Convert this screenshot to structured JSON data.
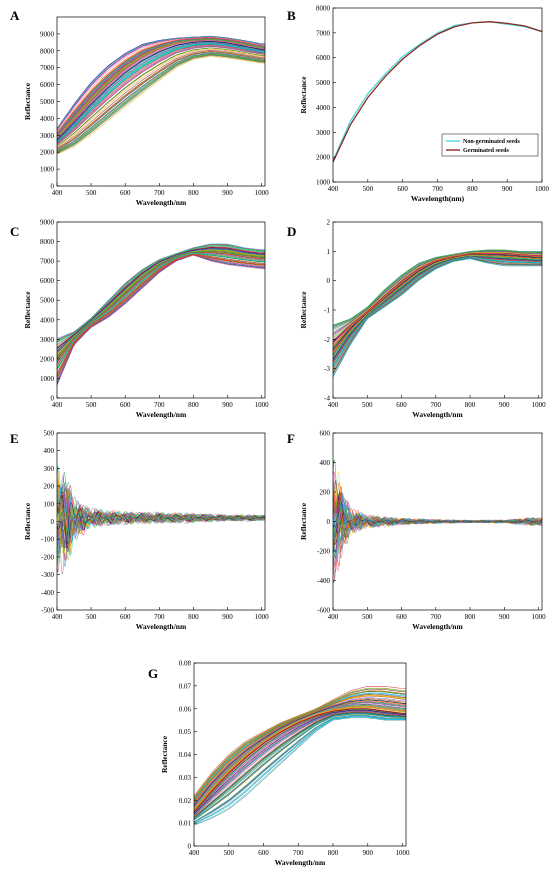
{
  "chart_data": [
    {
      "id": "A",
      "panel_label": "A",
      "type": "line",
      "xlabel": "Wavelength/nm",
      "ylabel": "Reflectance",
      "xlim": [
        400,
        1010
      ],
      "ylim": [
        0,
        10000
      ],
      "xticks": [
        "400",
        "500",
        "600",
        "700",
        "800",
        "900",
        "1000"
      ],
      "yticks": [
        "0",
        "1000",
        "2000",
        "3000",
        "4000",
        "5000",
        "6000",
        "7000",
        "8000",
        "9000"
      ],
      "x": [
        400,
        450,
        500,
        550,
        600,
        650,
        700,
        750,
        800,
        850,
        900,
        950,
        1000
      ],
      "mean": [
        2800,
        3900,
        5000,
        6000,
        6900,
        7600,
        8100,
        8450,
        8600,
        8650,
        8550,
        8350,
        8150
      ],
      "band_low": [
        1800,
        2200,
        2900,
        3700,
        4500,
        5300,
        6100,
        6900,
        7400,
        7600,
        7500,
        7350,
        7200
      ],
      "band_high": [
        3500,
        5000,
        6300,
        7300,
        8000,
        8500,
        8700,
        8800,
        8850,
        8900,
        8800,
        8650,
        8450
      ],
      "series_count": 120
    },
    {
      "id": "B",
      "panel_label": "B",
      "type": "line",
      "xlabel": "Wavelength(nm)",
      "ylabel": "Reflectance",
      "xlim": [
        400,
        1000
      ],
      "ylim": [
        1000,
        8000
      ],
      "xticks": [
        "400",
        "500",
        "600",
        "700",
        "800",
        "900",
        "1000"
      ],
      "yticks": [
        "1000",
        "2000",
        "3000",
        "4000",
        "5000",
        "6000",
        "7000",
        "8000"
      ],
      "x": [
        400,
        450,
        500,
        550,
        600,
        650,
        700,
        750,
        800,
        850,
        900,
        950,
        1000
      ],
      "series": [
        {
          "name": "Non-germinated seeds",
          "color": "#4fd6e0",
          "values": [
            1850,
            3450,
            4550,
            5350,
            6050,
            6550,
            7000,
            7300,
            7400,
            7450,
            7350,
            7250,
            7050
          ]
        },
        {
          "name": "Germinated seeds",
          "color": "#8b2a1e",
          "values": [
            1800,
            3300,
            4400,
            5250,
            5950,
            6500,
            6950,
            7250,
            7400,
            7450,
            7380,
            7280,
            7050
          ]
        }
      ]
    },
    {
      "id": "C",
      "panel_label": "C",
      "type": "line",
      "xlabel": "Wavelength/nm",
      "ylabel": "Reflectance",
      "xlim": [
        400,
        1010
      ],
      "ylim": [
        0,
        9000
      ],
      "xticks": [
        "400",
        "500",
        "600",
        "700",
        "800",
        "900",
        "1000"
      ],
      "yticks": [
        "0",
        "1000",
        "2000",
        "3000",
        "4000",
        "5000",
        "6000",
        "7000",
        "8000",
        "9000"
      ],
      "x": [
        400,
        450,
        500,
        550,
        600,
        650,
        700,
        750,
        800,
        850,
        900,
        950,
        1000
      ],
      "mean": [
        2000,
        3100,
        3900,
        4600,
        5400,
        6200,
        6850,
        7250,
        7450,
        7500,
        7450,
        7300,
        7200
      ],
      "band_low": [
        600,
        2700,
        3600,
        4100,
        4800,
        5600,
        6400,
        7000,
        7300,
        7000,
        6800,
        6700,
        6600
      ],
      "band_high": [
        3100,
        3400,
        4100,
        5000,
        5900,
        6600,
        7100,
        7400,
        7700,
        7900,
        7900,
        7700,
        7600
      ],
      "series_count": 120
    },
    {
      "id": "D",
      "panel_label": "D",
      "type": "line",
      "xlabel": "Wavelength/nm",
      "ylabel": "Reflectance",
      "xlim": [
        400,
        1010
      ],
      "ylim": [
        -4,
        2
      ],
      "xticks": [
        "400",
        "500",
        "600",
        "700",
        "800",
        "900",
        "1000"
      ],
      "yticks": [
        "-4",
        "-3",
        "-2",
        "-1",
        "0",
        "1",
        "2"
      ],
      "x": [
        400,
        450,
        500,
        550,
        600,
        650,
        700,
        750,
        800,
        850,
        900,
        950,
        1000
      ],
      "mean": [
        -2.3,
        -1.6,
        -1.1,
        -0.6,
        -0.1,
        0.35,
        0.65,
        0.8,
        0.9,
        0.9,
        0.9,
        0.85,
        0.8
      ],
      "band_low": [
        -3.3,
        -2.2,
        -1.3,
        -0.9,
        -0.5,
        0.0,
        0.4,
        0.65,
        0.75,
        0.6,
        0.5,
        0.5,
        0.5
      ],
      "band_high": [
        -1.5,
        -1.3,
        -0.9,
        -0.3,
        0.2,
        0.6,
        0.8,
        0.9,
        1.0,
        1.05,
        1.05,
        1.0,
        1.0
      ],
      "series_count": 120
    },
    {
      "id": "E",
      "panel_label": "E",
      "type": "line",
      "xlabel": "Wavelength/nm",
      "ylabel": "Reflectance",
      "xlim": [
        400,
        1010
      ],
      "ylim": [
        -500,
        500
      ],
      "xticks": [
        "400",
        "500",
        "600",
        "700",
        "800",
        "900",
        "1000"
      ],
      "yticks": [
        "-500",
        "-400",
        "-300",
        "-200",
        "-100",
        "0",
        "100",
        "200",
        "300",
        "400",
        "500"
      ],
      "center": 20,
      "envelope": [
        [
          400,
          380
        ],
        [
          430,
          260
        ],
        [
          460,
          120
        ],
        [
          500,
          60
        ],
        [
          600,
          40
        ],
        [
          700,
          35
        ],
        [
          800,
          30
        ],
        [
          900,
          20
        ],
        [
          1000,
          20
        ]
      ],
      "series_count": 60
    },
    {
      "id": "F",
      "panel_label": "F",
      "type": "line",
      "xlabel": "Wavelength/nm",
      "ylabel": "Reflectance",
      "xlim": [
        400,
        1010
      ],
      "ylim": [
        -600,
        600
      ],
      "xticks": [
        "400",
        "500",
        "600",
        "700",
        "800",
        "900",
        "1000"
      ],
      "yticks": [
        "-600",
        "-400",
        "-200",
        "0",
        "200",
        "400",
        "600"
      ],
      "center": 0,
      "envelope": [
        [
          400,
          560
        ],
        [
          430,
          200
        ],
        [
          460,
          90
        ],
        [
          500,
          50
        ],
        [
          600,
          25
        ],
        [
          700,
          15
        ],
        [
          800,
          10
        ],
        [
          900,
          12
        ],
        [
          1000,
          35
        ]
      ],
      "series_count": 60
    },
    {
      "id": "G",
      "panel_label": "G",
      "type": "line",
      "xlabel": "Wavelength/nm",
      "ylabel": "Reflectance",
      "xlim": [
        400,
        1010
      ],
      "ylim": [
        0,
        0.08
      ],
      "xticks": [
        "400",
        "500",
        "600",
        "700",
        "800",
        "900",
        "1000"
      ],
      "yticks": [
        "0",
        "0.01",
        "0.02",
        "0.03",
        "0.04",
        "0.05",
        "0.06",
        "0.07",
        "0.08"
      ],
      "x": [
        400,
        450,
        500,
        550,
        600,
        650,
        700,
        750,
        800,
        850,
        900,
        950,
        1000
      ],
      "mean": [
        0.015,
        0.024,
        0.032,
        0.039,
        0.045,
        0.05,
        0.054,
        0.057,
        0.059,
        0.06,
        0.06,
        0.059,
        0.058
      ],
      "band_low": [
        0.009,
        0.012,
        0.016,
        0.022,
        0.029,
        0.036,
        0.043,
        0.05,
        0.055,
        0.056,
        0.056,
        0.055,
        0.055
      ],
      "band_high": [
        0.022,
        0.032,
        0.04,
        0.046,
        0.05,
        0.054,
        0.057,
        0.06,
        0.064,
        0.068,
        0.07,
        0.07,
        0.069
      ],
      "series_count": 120
    }
  ]
}
